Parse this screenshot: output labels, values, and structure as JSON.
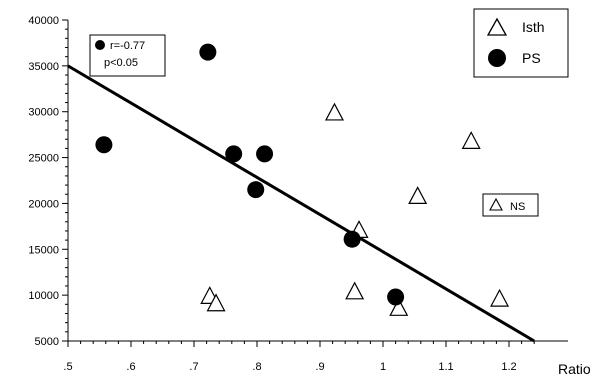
{
  "chart_data": {
    "type": "scatter",
    "xlabel": "Ratio",
    "ylabel": "",
    "xlim": [
      0.5,
      1.25
    ],
    "ylim": [
      5000,
      40000
    ],
    "x_ticks": [
      0.5,
      0.6,
      0.7,
      0.8,
      0.9,
      1.0,
      1.1,
      1.2
    ],
    "x_tick_labels": [
      ".5",
      ".6",
      ".7",
      ".8",
      ".9",
      "1",
      "1.1",
      "1.2"
    ],
    "y_ticks": [
      5000,
      10000,
      15000,
      20000,
      25000,
      30000,
      35000,
      40000
    ],
    "y_tick_labels": [
      "5000",
      "10000",
      "15000",
      "20000",
      "25000",
      "30000",
      "35000",
      "40000"
    ],
    "grid": false,
    "legend_placement": "top-right",
    "series": [
      {
        "name": "Isth",
        "marker": "open-triangle",
        "color": "#000000",
        "x": [
          0.725,
          0.735,
          0.923,
          0.955,
          0.962,
          1.025,
          1.055,
          1.14,
          1.185
        ],
        "y": [
          9800,
          9000,
          29800,
          10300,
          17000,
          8500,
          20700,
          26700,
          9500
        ]
      },
      {
        "name": "PS",
        "marker": "filled-circle",
        "color": "#000000",
        "x": [
          0.557,
          0.722,
          0.763,
          0.798,
          0.812,
          0.951,
          1.02
        ],
        "y": [
          26400,
          36500,
          25400,
          21500,
          25400,
          16100,
          9800
        ]
      }
    ],
    "fit_line": {
      "x": [
        0.5,
        1.24
      ],
      "y": [
        35000,
        5000
      ]
    },
    "annotations": {
      "stats_marker": "filled-circle",
      "r_text": "r=-0.77",
      "p_text": "p<0.05",
      "ns_marker": "open-triangle",
      "ns_text": "NS"
    }
  }
}
